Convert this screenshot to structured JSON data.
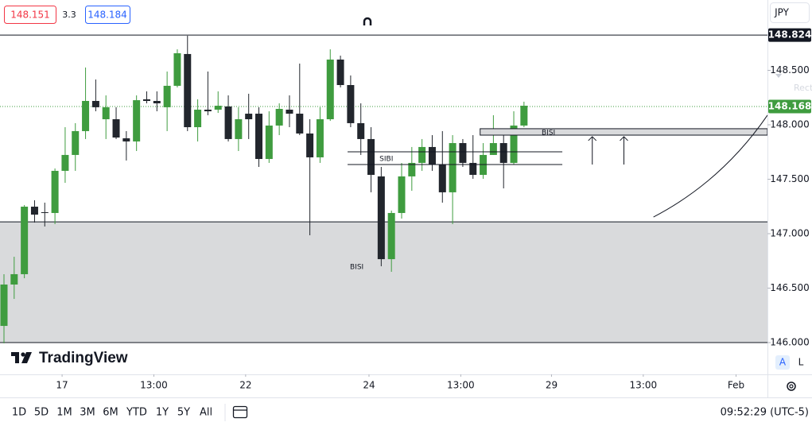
{
  "quote": {
    "bid": 148.151,
    "spread": 3.3,
    "ask": 148.184
  },
  "currency": "JPY",
  "tool_hint": "Rect",
  "scale_buttons": [
    "A",
    "L"
  ],
  "logo": "TradingView",
  "ranges": [
    "1D",
    "5D",
    "1M",
    "3M",
    "6M",
    "YTD",
    "1Y",
    "5Y",
    "All"
  ],
  "clock": "09:52:29 (UTC-5)",
  "chart_data": {
    "type": "candlestick",
    "up_color": "#3f9c3f",
    "down_color": "#22262d",
    "open": [
      146.153,
      146.533,
      146.628,
      147.248,
      147.197,
      147.19,
      147.577,
      147.723,
      147.942,
      148.219,
      148.051,
      148.051,
      147.876,
      147.847,
      148.234,
      148.219,
      148.161,
      148.358,
      148.65,
      147.978,
      148.139,
      148.139,
      148.168,
      147.869,
      148.102,
      148.102,
      147.686,
      147.993,
      148.139,
      148.102,
      147.92,
      147.701,
      148.051,
      148.599,
      148.365,
      148.015,
      147.869,
      147.526,
      146.766,
      147.19,
      147.526,
      147.65,
      147.796,
      147.635,
      147.38,
      147.832,
      147.65,
      147.54,
      147.723,
      147.832,
      147.65,
      147.993
    ],
    "high": [
      146.628,
      146.788,
      147.263,
      147.307,
      147.285,
      147.599,
      147.978,
      148.015,
      148.526,
      148.416,
      148.27,
      148.161,
      147.942,
      148.27,
      148.307,
      148.307,
      148.489,
      148.693,
      148.818,
      148.234,
      148.489,
      148.307,
      148.27,
      148.161,
      148.285,
      148.161,
      148.124,
      148.197,
      148.27,
      148.562,
      148.051,
      148.161,
      148.693,
      148.635,
      148.453,
      148.197,
      147.978,
      147.613,
      147.212,
      147.65,
      147.796,
      147.869,
      147.905,
      147.942,
      147.905,
      147.869,
      147.905,
      147.832,
      148.088,
      147.942,
      148.124,
      148.212
    ],
    "low": [
      145.993,
      146.401,
      146.591,
      147.102,
      147.066,
      147.088,
      147.467,
      147.577,
      147.869,
      148.124,
      147.869,
      147.869,
      147.672,
      147.759,
      148.197,
      148.124,
      147.942,
      148.343,
      147.942,
      147.847,
      148.088,
      148.109,
      147.847,
      147.759,
      147.869,
      147.613,
      147.65,
      147.905,
      147.978,
      147.905,
      146.985,
      147.65,
      148.036,
      148.343,
      147.978,
      147.723,
      147.38,
      146.701,
      146.65,
      147.139,
      147.394,
      147.577,
      147.577,
      147.285,
      147.088,
      147.613,
      147.504,
      147.504,
      147.723,
      147.416,
      147.635,
      147.978
    ],
    "close": [
      146.533,
      146.628,
      147.248,
      147.175,
      147.19,
      147.577,
      147.723,
      147.942,
      148.219,
      148.161,
      148.161,
      147.883,
      147.847,
      148.226,
      148.219,
      148.197,
      148.358,
      148.657,
      147.978,
      148.139,
      148.124,
      148.175,
      147.869,
      148.051,
      148.051,
      147.686,
      147.993,
      148.146,
      148.102,
      147.92,
      147.701,
      148.051,
      148.599,
      148.365,
      148.015,
      147.869,
      147.54,
      146.766,
      147.19,
      147.526,
      147.65,
      147.796,
      147.635,
      147.38,
      147.832,
      147.65,
      147.54,
      147.723,
      147.832,
      147.65,
      147.993,
      148.175
    ],
    "xlim": [
      -0.39,
      74.88
    ],
    "xticks": [
      {
        "value": 5.7,
        "label": "17"
      },
      {
        "value": 14.7,
        "label": "13:00"
      },
      {
        "value": 23.7,
        "label": "22"
      },
      {
        "value": 35.8,
        "label": "24"
      },
      {
        "value": 44.8,
        "label": "13:00"
      },
      {
        "value": 53.7,
        "label": "29"
      },
      {
        "value": 62.7,
        "label": "13:00"
      },
      {
        "value": 71.8,
        "label": "Feb"
      }
    ],
    "ylim": [
      145.708,
      149.146
    ],
    "yticks": [
      {
        "value": 146.0,
        "label": "146.000"
      },
      {
        "value": 146.5,
        "label": "146.500"
      },
      {
        "value": 147.0,
        "label": "147.000"
      },
      {
        "value": 147.5,
        "label": "147.500"
      },
      {
        "value": 148.0,
        "label": "148.000"
      },
      {
        "value": 148.5,
        "label": "148.500"
      }
    ],
    "grid": false,
    "last_price": 148.168,
    "level": 148.824,
    "zones": [
      {
        "top": 147.109,
        "bottom": 146.0
      }
    ],
    "lines": [
      {
        "price": 147.752,
        "from": 33.7,
        "to": 54.76
      },
      {
        "price": 147.635,
        "from": 33.7,
        "to": 54.76
      }
    ],
    "boxes": [
      {
        "top": 147.964,
        "bottom": 147.905,
        "from": 46.7,
        "to": 74.88
      }
    ],
    "arrows": [
      {
        "x": 57.7,
        "from": 147.635,
        "to": 147.891
      },
      {
        "x": 60.8,
        "from": 147.635,
        "to": 147.891
      }
    ],
    "curve": {
      "x": [
        63.7,
        74.88
      ],
      "y": [
        147.153,
        148.088
      ]
    },
    "annotations": [
      {
        "text": "BISI",
        "x": 34.6,
        "y": 146.693
      },
      {
        "text": "SIBI",
        "x": 37.5,
        "y": 147.686
      },
      {
        "text": "BISI",
        "x": 53.4,
        "y": 147.927
      }
    ]
  }
}
